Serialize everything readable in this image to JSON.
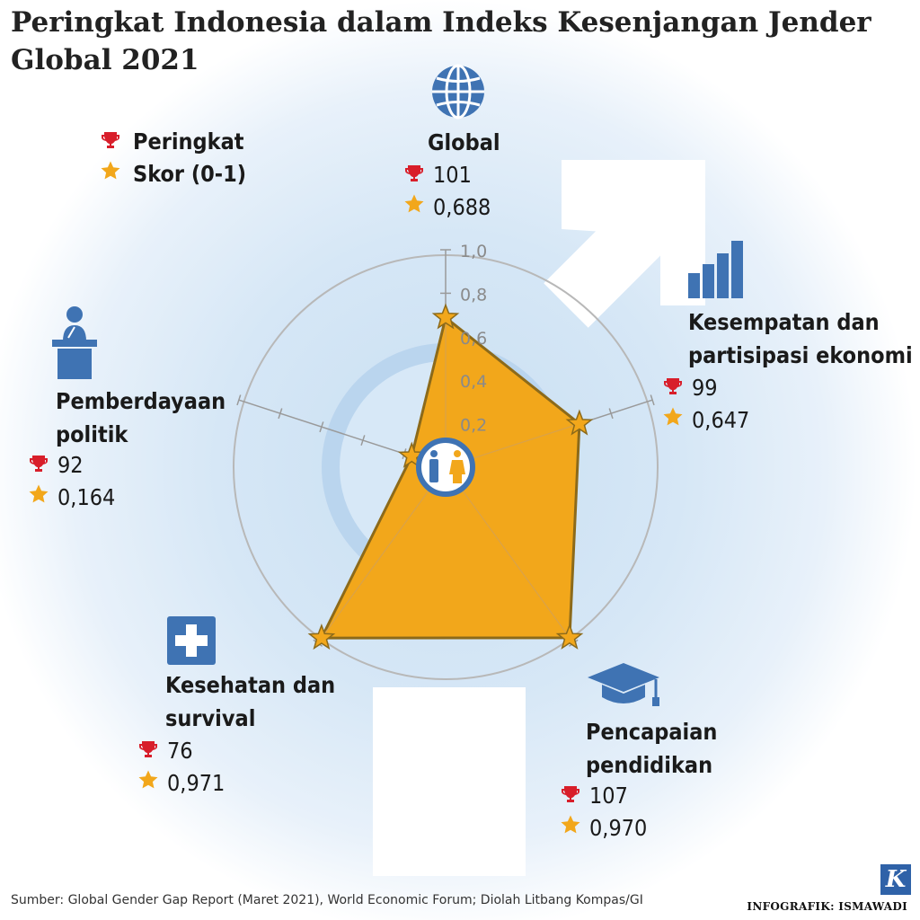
{
  "title": "Peringkat Indonesia dalam Indeks Kesenjangan Jender Global 2021",
  "legend": {
    "rank_label": "Peringkat",
    "score_label": "Skor (0-1)"
  },
  "categories": {
    "global": {
      "label": "Global",
      "rank": "101",
      "score": "0,688"
    },
    "economy": {
      "label": "Kesempatan dan partisipasi ekonomi",
      "rank": "99",
      "score": "0,647"
    },
    "education": {
      "label": "Pencapaian pendidikan",
      "rank": "107",
      "score": "0,970"
    },
    "health": {
      "label": "Kesehatan dan survival",
      "rank": "76",
      "score": "0,971"
    },
    "politics": {
      "label": "Pemberdayaan politik",
      "rank": "92",
      "score": "0,164"
    }
  },
  "chart_data": {
    "type": "radar",
    "axes": [
      "Global",
      "Kesempatan dan partisipasi ekonomi",
      "Pencapaian pendidikan",
      "Kesehatan dan survival",
      "Pemberdayaan politik"
    ],
    "values": [
      0.688,
      0.647,
      0.97,
      0.971,
      0.164
    ],
    "ranks": [
      101,
      99,
      107,
      76,
      92
    ],
    "rlim": [
      0,
      1.0
    ],
    "tick_labels": [
      "0,2",
      "0,4",
      "0,6",
      "0,8",
      "1,0"
    ]
  },
  "colors": {
    "fill": "#f2a71b",
    "outline": "#8c6a1a",
    "accent_blue": "#3f73b3",
    "trophy_red": "#d81e2a",
    "star_gold": "#f2a71b",
    "grid": "#9a9a9a"
  },
  "icons": {
    "rank": "trophy-icon",
    "score": "star-icon",
    "global": "globe-icon",
    "economy": "bar-chart-icon",
    "education": "graduation-cap-icon",
    "health": "medical-cross-icon",
    "politics": "podium-speaker-icon"
  },
  "source": "Sumber: Global Gender Gap Report (Maret 2021), World Economic Forum; Diolah Litbang Kompas/GI",
  "credit": "INFOGRAFIK: ISMAWADI",
  "brand_logo": "K"
}
